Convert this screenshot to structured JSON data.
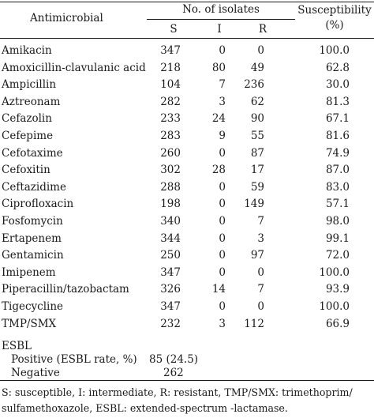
{
  "table": {
    "headers": {
      "antimicrobial": "Antimicrobial",
      "isolates": "No. of isolates",
      "susceptibility_line1": "Susceptibility",
      "susceptibility_line2": "(%)",
      "s": "S",
      "i": "I",
      "r": "R"
    },
    "rows": [
      {
        "name": "Amikacin",
        "s": "347",
        "i": "0",
        "r": "0",
        "pct": "100.0"
      },
      {
        "name": "Amoxicillin-clavulanic acid",
        "s": "218",
        "i": "80",
        "r": "49",
        "pct": "62.8"
      },
      {
        "name": "Ampicillin",
        "s": "104",
        "i": "7",
        "r": "236",
        "pct": "30.0"
      },
      {
        "name": "Aztreonam",
        "s": "282",
        "i": "3",
        "r": "62",
        "pct": "81.3"
      },
      {
        "name": "Cefazolin",
        "s": "233",
        "i": "24",
        "r": "90",
        "pct": "67.1"
      },
      {
        "name": "Cefepime",
        "s": "283",
        "i": "9",
        "r": "55",
        "pct": "81.6"
      },
      {
        "name": "Cefotaxime",
        "s": "260",
        "i": "0",
        "r": "87",
        "pct": "74.9"
      },
      {
        "name": "Cefoxitin",
        "s": "302",
        "i": "28",
        "r": "17",
        "pct": "87.0"
      },
      {
        "name": "Ceftazidime",
        "s": "288",
        "i": "0",
        "r": "59",
        "pct": "83.0"
      },
      {
        "name": "Ciprofloxacin",
        "s": "198",
        "i": "0",
        "r": "149",
        "pct": "57.1"
      },
      {
        "name": "Fosfomycin",
        "s": "340",
        "i": "0",
        "r": "7",
        "pct": "98.0"
      },
      {
        "name": "Ertapenem",
        "s": "344",
        "i": "0",
        "r": "3",
        "pct": "99.1"
      },
      {
        "name": "Gentamicin",
        "s": "250",
        "i": "0",
        "r": "97",
        "pct": "72.0"
      },
      {
        "name": "Imipenem",
        "s": "347",
        "i": "0",
        "r": "0",
        "pct": "100.0"
      },
      {
        "name": "Piperacillin/tazobactam",
        "s": "326",
        "i": "14",
        "r": "7",
        "pct": "93.9"
      },
      {
        "name": "Tigecycline",
        "s": "347",
        "i": "0",
        "r": "0",
        "pct": "100.0"
      },
      {
        "name": "TMP/SMX",
        "s": "232",
        "i": "3",
        "r": "112",
        "pct": "66.9"
      }
    ],
    "esbl": {
      "label": "ESBL",
      "positive_label": "Positive (ESBL rate, %)",
      "positive_value": "85 (24.5)",
      "negative_label": "Negative",
      "negative_value": "262"
    }
  },
  "footnote": {
    "line1": "S: susceptible, I: intermediate, R: resistant, TMP/SMX: trimethoprim/",
    "line2": "sulfamethoxazole, ESBL: extended-spectrum -lactamase."
  }
}
